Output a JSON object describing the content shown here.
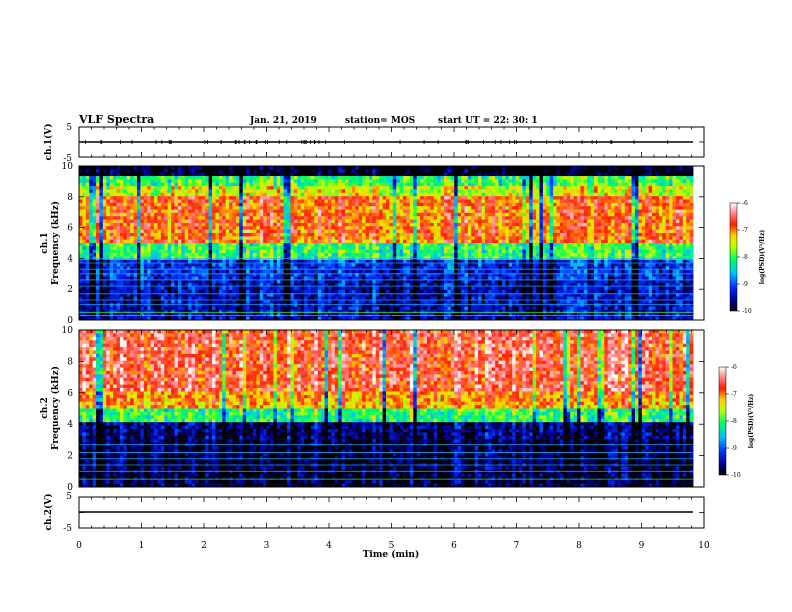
{
  "header": {
    "title": "VLF Spectra",
    "date": "Jan. 21, 2019",
    "station": "station= MOS",
    "start": "start UT = 22: 30: 1"
  },
  "chart_data": {
    "type": "heatmap",
    "xlabel": "Time (min)",
    "xlim": [
      0,
      10
    ],
    "xticks": [
      "0",
      "1",
      "2",
      "3",
      "4",
      "5",
      "6",
      "7",
      "8",
      "9",
      "10"
    ],
    "panels": [
      {
        "id": "ch1-waveform",
        "type": "line",
        "ylabel": "ch.1(V)",
        "ylim": [
          -5,
          5
        ],
        "yticks": [
          "5",
          "-5"
        ],
        "baseline": 0
      },
      {
        "id": "ch1-spectrogram",
        "type": "heatmap",
        "ylabel_top": "ch.1",
        "ylabel": "Frequency (kHz)",
        "ylim": [
          0,
          10
        ],
        "yticks": [
          "0",
          "2",
          "4",
          "6",
          "8",
          "10"
        ],
        "colorbar": {
          "label": "log(PSD)(V²/Hz)",
          "range": [
            -10,
            -6
          ],
          "ticks": [
            "-6",
            "-7",
            "-8",
            "-9",
            "-10"
          ]
        }
      },
      {
        "id": "ch2-spectrogram",
        "type": "heatmap",
        "ylabel_top": "ch.2",
        "ylabel": "Frequency (kHz)",
        "ylim": [
          0,
          10
        ],
        "yticks": [
          "0",
          "2",
          "4",
          "6",
          "8",
          "10"
        ],
        "colorbar": {
          "label": "log(PSD)(V²/Hz)",
          "range": [
            -10,
            -6
          ],
          "ticks": [
            "-6",
            "-7",
            "-8",
            "-9",
            "-10"
          ]
        }
      },
      {
        "id": "ch2-waveform",
        "type": "line",
        "ylabel": "ch.2(V)",
        "ylim": [
          -5,
          5
        ],
        "yticks": [
          "5",
          "-5"
        ],
        "baseline": 0
      }
    ]
  }
}
